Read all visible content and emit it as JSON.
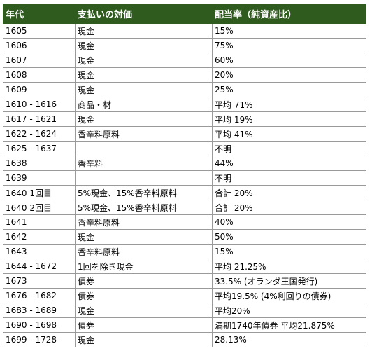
{
  "header": {
    "col_period": "年代",
    "col_payment": "支払いの対価",
    "col_rate": "配当率（純資産比）"
  },
  "rows": [
    {
      "period": "1605",
      "payment": "現金",
      "rate": "15%"
    },
    {
      "period": "1606",
      "payment": "現金",
      "rate": "75%"
    },
    {
      "period": "1607",
      "payment": "現金",
      "rate": "60%"
    },
    {
      "period": "1608",
      "payment": "現金",
      "rate": "20%"
    },
    {
      "period": "1609",
      "payment": "現金",
      "rate": "25%"
    },
    {
      "period": "1610 - 1616",
      "payment": "商品・材",
      "rate": "平均 71%"
    },
    {
      "period": "1617 - 1621",
      "payment": "現金",
      "rate": "平均 19%"
    },
    {
      "period": "1622 - 1624",
      "payment": "香辛料原料",
      "rate": "平均 41%"
    },
    {
      "period": "1625 - 1637",
      "payment": "",
      "rate": "不明"
    },
    {
      "period": "1638",
      "payment": "香辛料",
      "rate": "44%"
    },
    {
      "period": "1639",
      "payment": "",
      "rate": "不明"
    },
    {
      "period": "1640  1回目",
      "payment": "5%現金、15%香辛料原料",
      "rate": "合計 20%"
    },
    {
      "period": "1640  2回目",
      "payment": "5%現金、15%香辛料原料",
      "rate": "合計 20%"
    },
    {
      "period": "1641",
      "payment": "香辛料原料",
      "rate": "40%"
    },
    {
      "period": "1642",
      "payment": "現金",
      "rate": "50%"
    },
    {
      "period": "1643",
      "payment": "香辛料原料",
      "rate": "15%"
    },
    {
      "period": "1644 - 1672",
      "payment": "1回を除き現金",
      "rate": "平均 21.25%"
    },
    {
      "period": "1673",
      "payment": "債券",
      "rate": "33.5% (オランダ王国発行)"
    },
    {
      "period": "1676 - 1682",
      "payment": "債券",
      "rate": "平均19.5% (4%利回りの債券)"
    },
    {
      "period": "1683 - 1689",
      "payment": "現金",
      "rate": "平均20%"
    },
    {
      "period": "1690 - 1698",
      "payment": "債券",
      "rate": "満期1740年債券 平均21.875%"
    },
    {
      "period": "1699 - 1728",
      "payment": "現金",
      "rate": "28.13%"
    }
  ],
  "colors": {
    "header_bg": "#2f5b1f",
    "header_text": "#ffffff",
    "border": "#9a9a9a"
  }
}
